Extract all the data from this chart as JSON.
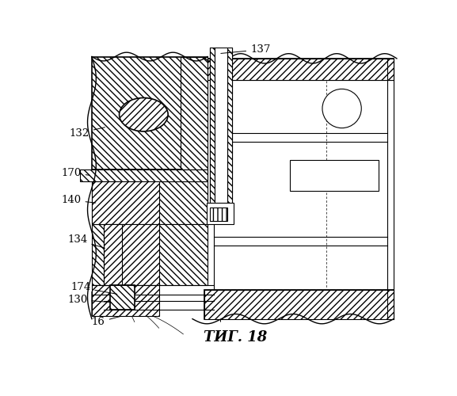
{
  "title": "ΤИГ. 18",
  "bg_color": "#ffffff",
  "line_color": "#000000",
  "lw": 0.8
}
